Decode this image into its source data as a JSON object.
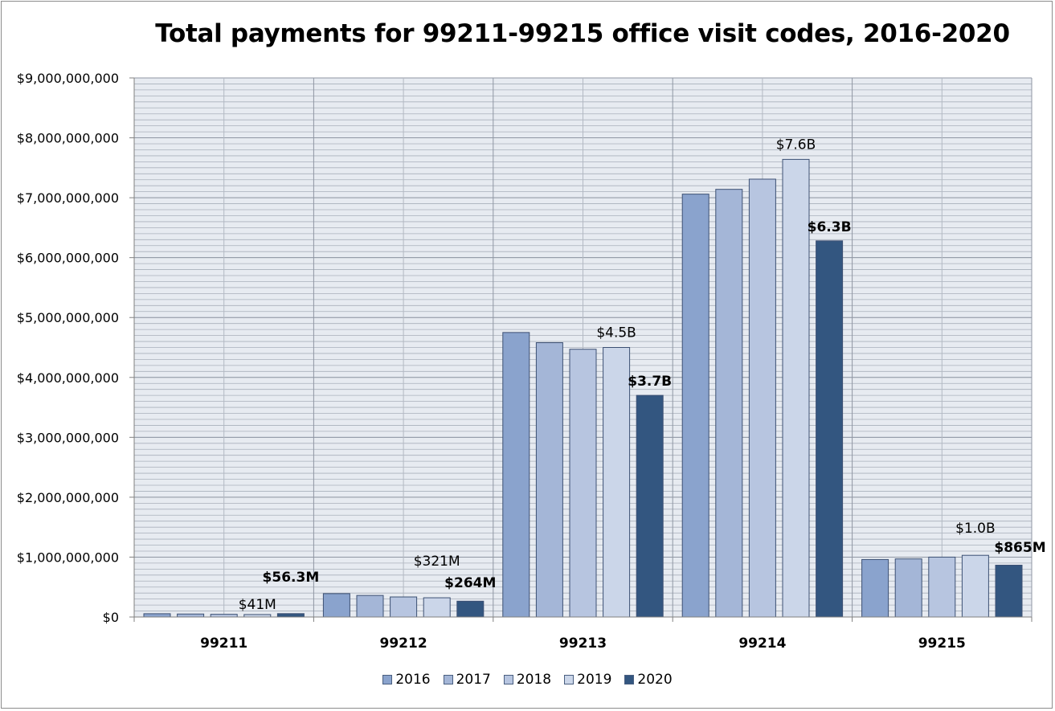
{
  "chart_data": {
    "type": "bar",
    "title": "Total payments for 99211-99215 office visit codes, 2016-2020",
    "categories": [
      "99211",
      "99212",
      "99213",
      "99214",
      "99215"
    ],
    "series": [
      {
        "name": "2016",
        "color": "#8aa3cd",
        "values": [
          55000000,
          390000000,
          4750000000,
          7060000000,
          960000000
        ]
      },
      {
        "name": "2017",
        "color": "#a4b6d7",
        "values": [
          50000000,
          360000000,
          4580000000,
          7140000000,
          970000000
        ]
      },
      {
        "name": "2018",
        "color": "#b7c5e0",
        "values": [
          45000000,
          335000000,
          4470000000,
          7310000000,
          1000000000
        ]
      },
      {
        "name": "2019",
        "color": "#cbd6e9",
        "values": [
          41000000,
          321000000,
          4500000000,
          7640000000,
          1030000000
        ]
      },
      {
        "name": "2020",
        "color": "#335680",
        "values": [
          56300000,
          264000000,
          3700000000,
          6280000000,
          865000000
        ]
      }
    ],
    "ylim": [
      0,
      9000000000
    ],
    "yticks": [
      0,
      1000000000,
      2000000000,
      3000000000,
      4000000000,
      5000000000,
      6000000000,
      7000000000,
      8000000000,
      9000000000
    ],
    "ytick_labels": [
      "$0",
      "$1,000,000,000",
      "$2,000,000,000",
      "$3,000,000,000",
      "$4,000,000,000",
      "$5,000,000,000",
      "$6,000,000,000",
      "$7,000,000,000",
      "$8,000,000,000",
      "$9,000,000,000"
    ],
    "xlabel": "",
    "ylabel": "",
    "grid": true,
    "legend_position": "bottom",
    "annotations": [
      {
        "category": 0,
        "series": 3,
        "text": "$41M",
        "bold": false
      },
      {
        "category": 0,
        "series": 4,
        "text": "$56.3M",
        "bold": true
      },
      {
        "category": 1,
        "series": 3,
        "text": "$321M",
        "bold": false
      },
      {
        "category": 1,
        "series": 4,
        "text": "$264M",
        "bold": true
      },
      {
        "category": 2,
        "series": 3,
        "text": "$4.5B",
        "bold": false
      },
      {
        "category": 2,
        "series": 4,
        "text": "$3.7B",
        "bold": true
      },
      {
        "category": 3,
        "series": 3,
        "text": "$7.6B",
        "bold": false
      },
      {
        "category": 3,
        "series": 4,
        "text": "$6.3B",
        "bold": true
      },
      {
        "category": 4,
        "series": 3,
        "text": "$1.0B",
        "bold": false
      },
      {
        "category": 4,
        "series": 4,
        "text": "$865M",
        "bold": true
      }
    ]
  }
}
